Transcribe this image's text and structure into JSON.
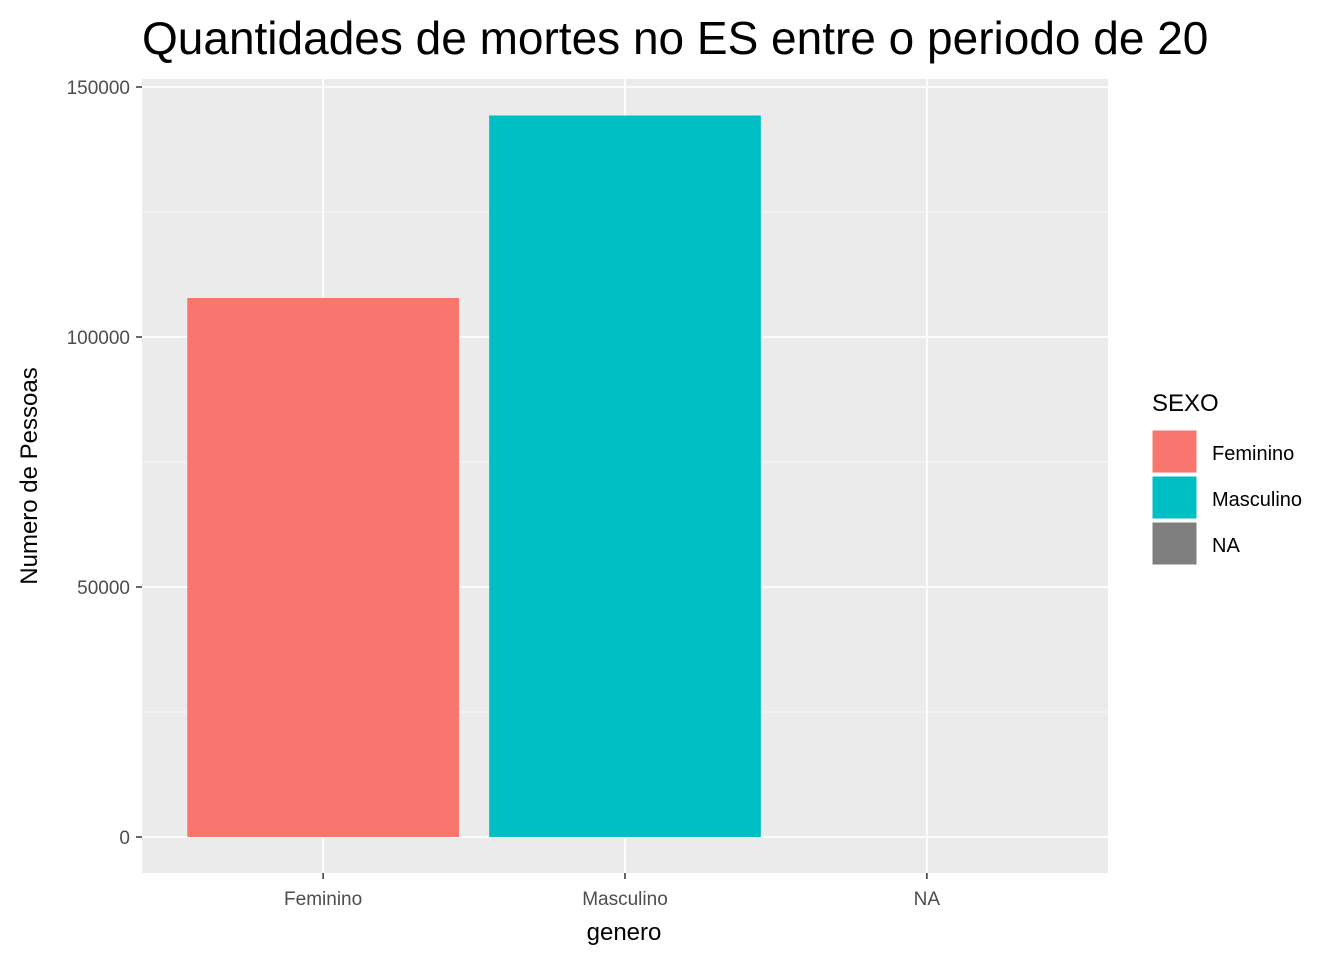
{
  "chart_data": {
    "type": "bar",
    "title": "Quantidades de mortes no ES entre o periodo de 20",
    "xlabel": "genero",
    "ylabel": "Numero de Pessoas",
    "categories": [
      "Feminino",
      "Masculino",
      "NA"
    ],
    "values": [
      107800,
      144300,
      0
    ],
    "colors": [
      "#F8766D",
      "#00BFC4",
      "#7F7F7F"
    ],
    "ylim": [
      -7200,
      151600
    ],
    "yticks": [
      0,
      50000,
      100000,
      150000
    ],
    "ytick_labels": [
      "0",
      "50000",
      "100000",
      "150000"
    ],
    "grid": true,
    "background": "#EBEBEB",
    "legend": {
      "title": "SEXO",
      "position": "right",
      "entries": [
        "Feminino",
        "Masculino",
        "NA"
      ]
    }
  }
}
